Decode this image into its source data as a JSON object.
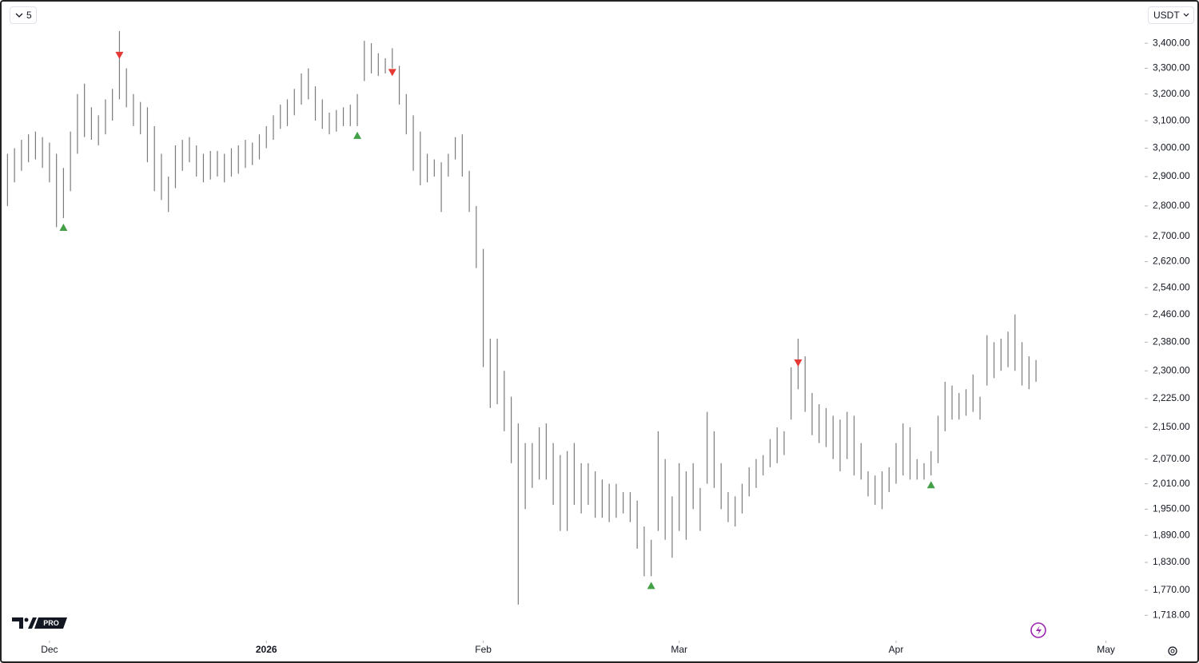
{
  "interval": "5",
  "currency": "USDT",
  "logo_badge": "PRO",
  "chart_data": {
    "type": "range-bar",
    "color": "#7b7b7b",
    "log_scale": true,
    "ylim": [
      1670,
      3570
    ],
    "yticks": [
      {
        "value": 1718,
        "label": "1,718.00"
      },
      {
        "value": 1770,
        "label": "1,770.00"
      },
      {
        "value": 1830,
        "label": "1,830.00"
      },
      {
        "value": 1890,
        "label": "1,890.00"
      },
      {
        "value": 1950,
        "label": "1,950.00"
      },
      {
        "value": 2010,
        "label": "2,010.00"
      },
      {
        "value": 2070,
        "label": "2,070.00"
      },
      {
        "value": 2150,
        "label": "2,150.00"
      },
      {
        "value": 2225,
        "label": "2,225.00"
      },
      {
        "value": 2300,
        "label": "2,300.00"
      },
      {
        "value": 2380,
        "label": "2,380.00"
      },
      {
        "value": 2460,
        "label": "2,460.00"
      },
      {
        "value": 2540,
        "label": "2,540.00"
      },
      {
        "value": 2620,
        "label": "2,620.00"
      },
      {
        "value": 2700,
        "label": "2,700.00"
      },
      {
        "value": 2800,
        "label": "2,800.00"
      },
      {
        "value": 2900,
        "label": "2,900.00"
      },
      {
        "value": 3000,
        "label": "3,000.00"
      },
      {
        "value": 3100,
        "label": "3,100.00"
      },
      {
        "value": 3200,
        "label": "3,200.00"
      },
      {
        "value": 3300,
        "label": "3,300.00"
      },
      {
        "value": 3400,
        "label": "3,400.00"
      }
    ],
    "xlim": [
      -0.5,
      162.3
    ],
    "xticks": [
      {
        "value": 6,
        "label": "Dec"
      },
      {
        "value": 37,
        "label": "2026"
      },
      {
        "value": 68,
        "label": "Feb"
      },
      {
        "value": 96,
        "label": "Mar"
      },
      {
        "value": 127,
        "label": "Apr"
      },
      {
        "value": 157,
        "label": "May"
      }
    ],
    "high": [
      2980,
      3000,
      3030,
      3050,
      3060,
      3040,
      3020,
      2980,
      2930,
      3060,
      3200,
      3240,
      3150,
      3120,
      3180,
      3220,
      3450,
      3300,
      3200,
      3170,
      3150,
      3080,
      2980,
      2900,
      3010,
      3030,
      3040,
      3010,
      2980,
      2990,
      2990,
      2980,
      3000,
      3010,
      3030,
      3020,
      3050,
      3080,
      3120,
      3160,
      3180,
      3220,
      3280,
      3300,
      3230,
      3180,
      3130,
      3140,
      3150,
      3160,
      3200,
      3410,
      3400,
      3360,
      3340,
      3380,
      3310,
      3200,
      3120,
      3060,
      2980,
      2960,
      2950,
      2980,
      3040,
      3050,
      2920,
      2800,
      2660,
      2390,
      2390,
      2300,
      2230,
      2160,
      2110,
      2110,
      2150,
      2160,
      2110,
      2080,
      2090,
      2110,
      2060,
      2060,
      2040,
      2020,
      2010,
      2010,
      1990,
      1990,
      1970,
      1910,
      1880,
      2140,
      2070,
      1980,
      2060,
      2040,
      2060,
      2000,
      2190,
      2140,
      2060,
      1990,
      1980,
      2010,
      2050,
      2070,
      2080,
      2120,
      2150,
      2140,
      2310,
      2390,
      2340,
      2240,
      2210,
      2200,
      2180,
      2170,
      2190,
      2180,
      2110,
      2040,
      2030,
      2040,
      2050,
      2110,
      2160,
      2150,
      2070,
      2060,
      2090,
      2180,
      2270,
      2260,
      2240,
      2250,
      2290,
      2230,
      2400,
      2380,
      2390,
      2410,
      2460,
      2380,
      2340,
      2330
    ],
    "low": [
      2800,
      2880,
      2920,
      2950,
      2960,
      2930,
      2880,
      2730,
      2760,
      2850,
      2980,
      3040,
      3030,
      3010,
      3050,
      3100,
      3180,
      3150,
      3080,
      3050,
      2950,
      2850,
      2820,
      2780,
      2860,
      2920,
      2950,
      2900,
      2880,
      2890,
      2900,
      2880,
      2900,
      2910,
      2930,
      2940,
      2960,
      3000,
      3030,
      3070,
      3080,
      3120,
      3160,
      3180,
      3100,
      3070,
      3050,
      3060,
      3080,
      3080,
      3080,
      3250,
      3280,
      3270,
      3280,
      3300,
      3160,
      3050,
      2920,
      2870,
      2880,
      2900,
      2780,
      2900,
      2960,
      2900,
      2780,
      2600,
      2310,
      2200,
      2210,
      2140,
      2060,
      1740,
      1950,
      2000,
      2020,
      2020,
      1960,
      1900,
      1900,
      1960,
      1940,
      1960,
      1930,
      1930,
      1920,
      1930,
      1940,
      1920,
      1860,
      1800,
      1800,
      1900,
      1880,
      1840,
      1900,
      1880,
      1950,
      1900,
      2010,
      2000,
      1950,
      1920,
      1910,
      1940,
      1980,
      2000,
      2030,
      2050,
      2060,
      2080,
      2170,
      2250,
      2190,
      2130,
      2110,
      2100,
      2070,
      2040,
      2070,
      2030,
      2020,
      1980,
      1960,
      1950,
      1990,
      2010,
      2030,
      2020,
      2020,
      2020,
      2030,
      2060,
      2140,
      2170,
      2170,
      2180,
      2190,
      2170,
      2260,
      2280,
      2300,
      2310,
      2300,
      2260,
      2250,
      2270
    ],
    "buy_signals": [
      8,
      50,
      92,
      132
    ],
    "buy_color": "#43a047",
    "sell_signals": [
      16,
      55,
      113
    ],
    "sell_color": "#e53935"
  }
}
